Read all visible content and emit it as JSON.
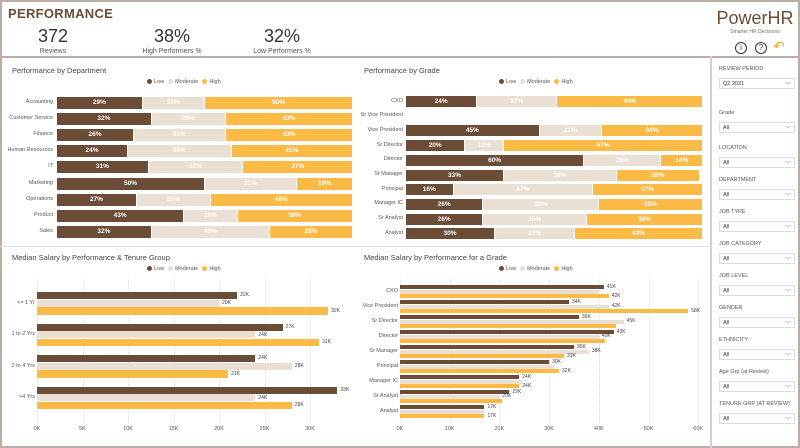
{
  "page_title": "PERFORMANCE",
  "kpis": [
    {
      "value": "372",
      "label": "Reviews"
    },
    {
      "value": "38%",
      "label": "High Performers %"
    },
    {
      "value": "32%",
      "label": "Low Performers %"
    }
  ],
  "logo": {
    "name": "PowerHR",
    "tagline": "Smarter HR Decisions"
  },
  "icons": [
    "info-icon",
    "help-icon",
    "back-arrow-icon"
  ],
  "colors": {
    "low": "#6b4c36",
    "moderate": "#e9dfd3",
    "high": "#fbb945",
    "accent": "#6b4c36"
  },
  "legend": [
    "Low",
    "Moderate",
    "High"
  ],
  "filters": [
    {
      "label": "REVIEW PERIOD",
      "value": "Q2 2021"
    },
    {
      "label": "Grade",
      "value": "All"
    },
    {
      "label": "LOCATION",
      "value": "All"
    },
    {
      "label": "DEPARTMENT",
      "value": "All"
    },
    {
      "label": "JOB TYPE",
      "value": "All"
    },
    {
      "label": "JOB CATEGORY",
      "value": "All"
    },
    {
      "label": "JOB LEVEL",
      "value": "All"
    },
    {
      "label": "GENDER",
      "value": "All"
    },
    {
      "label": "ETHNICITY",
      "value": "All"
    },
    {
      "label": "Age Grp (at Review)",
      "value": "All"
    },
    {
      "label": "TENURE GRP (AT REVIEW)",
      "value": "All"
    }
  ],
  "chart_data": [
    {
      "type": "bar",
      "stacked": "100%",
      "orientation": "horizontal",
      "title": "Performance by Department",
      "legend_position": "top-center",
      "categories": [
        "Accounting",
        "Customer Service",
        "Finance",
        "Human Resources",
        "IT",
        "Marketing",
        "Operations",
        "Product",
        "Sales"
      ],
      "series": [
        {
          "name": "Low",
          "values": [
            29,
            32,
            26,
            24,
            31,
            50,
            27,
            43,
            32
          ]
        },
        {
          "name": "Moderate",
          "values": [
            21,
            25,
            31,
            35,
            32,
            31,
            25,
            18,
            40
          ]
        },
        {
          "name": "High",
          "values": [
            50,
            43,
            43,
            41,
            37,
            19,
            48,
            39,
            28
          ]
        }
      ]
    },
    {
      "type": "bar",
      "stacked": "100%",
      "orientation": "horizontal",
      "title": "Performance by Grade",
      "legend_position": "top-center",
      "categories": [
        "CXO",
        "Sr Vice President",
        "Vice President",
        "Sr Director",
        "Director",
        "Sr Manager",
        "Principal",
        "Manager IC",
        "Sr Analyst",
        "Analyst"
      ],
      "series": [
        {
          "name": "Low",
          "values": [
            24,
            null,
            45,
            20,
            60,
            33,
            16,
            26,
            26,
            30
          ]
        },
        {
          "name": "Moderate",
          "values": [
            27,
            null,
            21,
            13,
            26,
            38,
            47,
            39,
            35,
            27
          ]
        },
        {
          "name": "High",
          "values": [
            49,
            null,
            34,
            67,
            14,
            28,
            37,
            35,
            39,
            43
          ]
        }
      ]
    },
    {
      "type": "bar",
      "orientation": "horizontal",
      "title": "Median Salary by Performance & Tenure Group",
      "legend_position": "top-center",
      "categories": [
        "<= 1 Yr",
        "1 to 2 Yrs",
        "2 to 4 Yrs",
        ">4 Yrs"
      ],
      "xlim": [
        0,
        33
      ],
      "xticks": [
        "0K",
        "5K",
        "10K",
        "15K",
        "20K",
        "25K",
        "30K"
      ],
      "grid": true,
      "series": [
        {
          "name": "Low",
          "values": [
            22,
            27,
            24,
            33
          ],
          "labels": [
            "22K",
            "27K",
            "24K",
            "33K"
          ]
        },
        {
          "name": "Moderate",
          "values": [
            20,
            24,
            28,
            24
          ],
          "labels": [
            "20K",
            "24K",
            "28K",
            "24K"
          ]
        },
        {
          "name": "High",
          "values": [
            32,
            31,
            21,
            28
          ],
          "labels": [
            "32K",
            "31K",
            "21K",
            "28K"
          ]
        }
      ]
    },
    {
      "type": "bar",
      "orientation": "horizontal",
      "title": "Median Salary by Performance for a Grade",
      "legend_position": "top-center",
      "categories": [
        "CXO",
        "Vice President",
        "Sr Director",
        "Director",
        "Sr Manager",
        "Principal",
        "Manager IC",
        "Sr Analyst",
        "Analyst"
      ],
      "xlim": [
        0,
        60
      ],
      "xticks": [
        "0K",
        "10K",
        "20K",
        "30K",
        "40K",
        "50K",
        "60K"
      ],
      "grid": true,
      "series": [
        {
          "name": "Low",
          "values": [
            41,
            34,
            36,
            43,
            35,
            30,
            24,
            22,
            17
          ],
          "labels": [
            "41K",
            "34K",
            "36K",
            "43K",
            "35K",
            "30K",
            "24K",
            "22K",
            "17K"
          ]
        },
        {
          "name": "Moderate",
          "values": [
            40,
            42,
            45,
            40,
            38,
            31,
            24.5,
            20,
            17
          ],
          "labels": [
            null,
            "42K",
            "45K",
            "40K",
            "38K",
            null,
            null,
            "20K",
            null
          ]
        },
        {
          "name": "High",
          "values": [
            42,
            58,
            43.5,
            41.3,
            33,
            32,
            24,
            20.5,
            17
          ],
          "labels": [
            "42K",
            "58K",
            null,
            null,
            "33K",
            "32K",
            "24K",
            null,
            "17K"
          ]
        }
      ]
    }
  ]
}
